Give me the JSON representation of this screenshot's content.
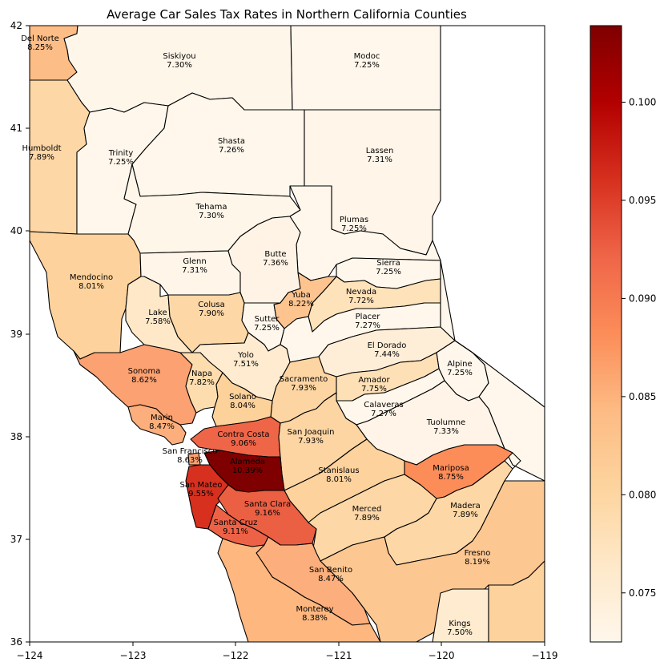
{
  "title": "Average Car Sales Tax Rates in Northern California Counties",
  "x_axis": {
    "min": -124,
    "max": -119,
    "ticks": [
      "−124",
      "−123",
      "−122",
      "−121",
      "−120",
      "−119"
    ]
  },
  "y_axis": {
    "min": 36,
    "max": 42,
    "ticks": [
      "36",
      "37",
      "38",
      "39",
      "40",
      "41",
      "42"
    ]
  },
  "colorbar": {
    "colormap": "OrRd",
    "min": 0.0725,
    "max": 0.1039,
    "ticks": [
      "0.075",
      "0.080",
      "0.085",
      "0.090",
      "0.095",
      "0.100"
    ],
    "tick_values": [
      0.075,
      0.08,
      0.085,
      0.09,
      0.095,
      0.1
    ]
  },
  "counties": [
    {
      "name": "Del Norte",
      "rate": "8.25%",
      "value": 0.0825,
      "color": "#fdbd86"
    },
    {
      "name": "Siskiyou",
      "rate": "7.30%",
      "value": 0.073,
      "color": "#fff6ea"
    },
    {
      "name": "Modoc",
      "rate": "7.25%",
      "value": 0.0725,
      "color": "#fff7ec"
    },
    {
      "name": "Humboldt",
      "rate": "7.89%",
      "value": 0.0789,
      "color": "#fdd7a6"
    },
    {
      "name": "Trinity",
      "rate": "7.25%",
      "value": 0.0725,
      "color": "#fff7ec"
    },
    {
      "name": "Shasta",
      "rate": "7.26%",
      "value": 0.0726,
      "color": "#fff7eb"
    },
    {
      "name": "Lassen",
      "rate": "7.31%",
      "value": 0.0731,
      "color": "#fff5e9"
    },
    {
      "name": "Tehama",
      "rate": "7.30%",
      "value": 0.073,
      "color": "#fff6ea"
    },
    {
      "name": "Plumas",
      "rate": "7.25%",
      "value": 0.0725,
      "color": "#fff7ec"
    },
    {
      "name": "Mendocino",
      "rate": "8.01%",
      "value": 0.0801,
      "color": "#fdd29c"
    },
    {
      "name": "Glenn",
      "rate": "7.31%",
      "value": 0.0731,
      "color": "#fff5e9"
    },
    {
      "name": "Butte",
      "rate": "7.36%",
      "value": 0.0736,
      "color": "#fff3e5"
    },
    {
      "name": "Sierra",
      "rate": "7.25%",
      "value": 0.0725,
      "color": "#fff7ec"
    },
    {
      "name": "Nevada",
      "rate": "7.72%",
      "value": 0.0772,
      "color": "#fee2b9"
    },
    {
      "name": "Yuba",
      "rate": "8.22%",
      "value": 0.0822,
      "color": "#fdc48f"
    },
    {
      "name": "Lake",
      "rate": "7.58%",
      "value": 0.0758,
      "color": "#fee8c8"
    },
    {
      "name": "Colusa",
      "rate": "7.90%",
      "value": 0.079,
      "color": "#fdd7a6"
    },
    {
      "name": "Sutter",
      "rate": "7.25%",
      "value": 0.0725,
      "color": "#fff7ec"
    },
    {
      "name": "Placer",
      "rate": "7.27%",
      "value": 0.0727,
      "color": "#fff7eb"
    },
    {
      "name": "El Dorado",
      "rate": "7.44%",
      "value": 0.0744,
      "color": "#feeed8"
    },
    {
      "name": "Yolo",
      "rate": "7.51%",
      "value": 0.0751,
      "color": "#feebd0"
    },
    {
      "name": "Alpine",
      "rate": "7.25%",
      "value": 0.0725,
      "color": "#fff7ec"
    },
    {
      "name": "Sonoma",
      "rate": "8.62%",
      "value": 0.0862,
      "color": "#fca171"
    },
    {
      "name": "Napa",
      "rate": "7.82%",
      "value": 0.0782,
      "color": "#fddcae"
    },
    {
      "name": "Sacramento",
      "rate": "7.93%",
      "value": 0.0793,
      "color": "#fdd5a3"
    },
    {
      "name": "Amador",
      "rate": "7.75%",
      "value": 0.0775,
      "color": "#fee0b6"
    },
    {
      "name": "Solano",
      "rate": "8.04%",
      "value": 0.0804,
      "color": "#fdd19a"
    },
    {
      "name": "Calaveras",
      "rate": "7.27%",
      "value": 0.0727,
      "color": "#fff7eb"
    },
    {
      "name": "Tuolumne",
      "rate": "7.33%",
      "value": 0.0733,
      "color": "#fff4e7"
    },
    {
      "name": "Marin",
      "rate": "8.47%",
      "value": 0.0847,
      "color": "#fcaf7c"
    },
    {
      "name": "Contra Costa",
      "rate": "9.06%",
      "value": 0.0906,
      "color": "#ef6548"
    },
    {
      "name": "San Joaquin",
      "rate": "7.93%",
      "value": 0.0793,
      "color": "#fdd5a3"
    },
    {
      "name": "San Francisco",
      "rate": "8.63%",
      "value": 0.0863,
      "color": "#fca070"
    },
    {
      "name": "Alameda",
      "rate": "10.39%",
      "value": 0.1039,
      "color": "#7f0000"
    },
    {
      "name": "Mariposa",
      "rate": "8.75%",
      "value": 0.0875,
      "color": "#fc8d59"
    },
    {
      "name": "San Mateo",
      "rate": "9.55%",
      "value": 0.0955,
      "color": "#d7301f"
    },
    {
      "name": "Stanislaus",
      "rate": "8.01%",
      "value": 0.0801,
      "color": "#fdd29c"
    },
    {
      "name": "Santa Clara",
      "rate": "9.16%",
      "value": 0.0916,
      "color": "#eb5f43"
    },
    {
      "name": "Madera",
      "rate": "7.89%",
      "value": 0.0789,
      "color": "#fdd7a6"
    },
    {
      "name": "Merced",
      "rate": "7.89%",
      "value": 0.0789,
      "color": "#fdd7a6"
    },
    {
      "name": "Santa Cruz",
      "rate": "9.11%",
      "value": 0.0911,
      "color": "#ed6246"
    },
    {
      "name": "Fresno",
      "rate": "8.19%",
      "value": 0.0819,
      "color": "#fdc792"
    },
    {
      "name": "San Benito",
      "rate": "8.47%",
      "value": 0.0847,
      "color": "#fcaf7c"
    },
    {
      "name": "Monterey",
      "rate": "8.38%",
      "value": 0.0838,
      "color": "#fdb77f"
    },
    {
      "name": "Kings",
      "rate": "7.50%",
      "value": 0.075,
      "color": "#feebd0"
    }
  ]
}
